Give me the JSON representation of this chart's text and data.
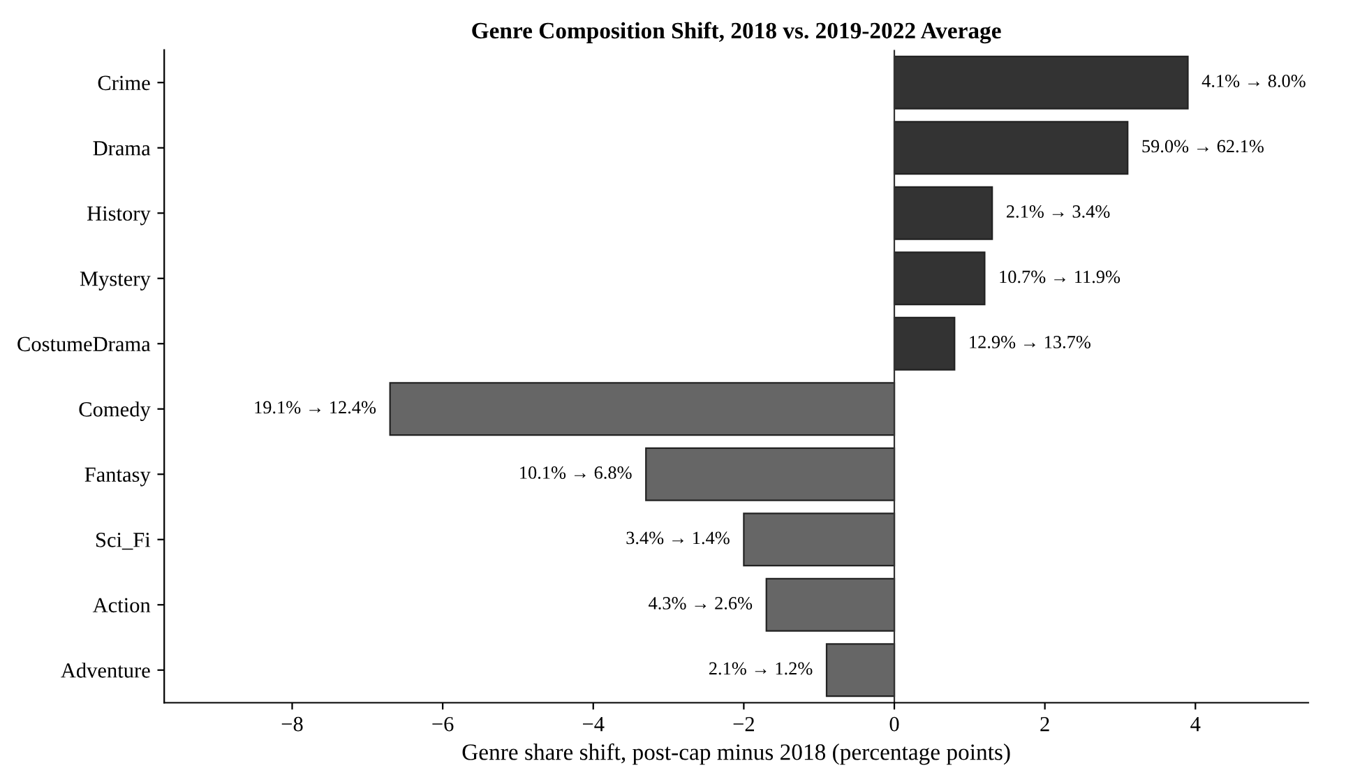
{
  "chart_data": {
    "type": "bar",
    "orientation": "horizontal",
    "title": "Genre Composition Shift, 2018 vs. 2019-2022 Average",
    "xlabel": "Genre share shift, post-cap minus 2018 (percentage points)",
    "categories": [
      "Crime",
      "Drama",
      "History",
      "Mystery",
      "CostumeDrama",
      "Comedy",
      "Fantasy",
      "Sci_Fi",
      "Action",
      "Adventure"
    ],
    "values": [
      3.9,
      3.1,
      1.3,
      1.2,
      0.8,
      -6.7,
      -3.3,
      -2.0,
      -1.7,
      -0.9
    ],
    "colors": [
      "#333333",
      "#333333",
      "#333333",
      "#333333",
      "#333333",
      "#666666",
      "#666666",
      "#666666",
      "#666666",
      "#666666"
    ],
    "annotations": [
      {
        "text": "4.1% → 8.0%",
        "x": 3.9,
        "y": "Crime"
      },
      {
        "text": "59.0% → 62.1%",
        "x": 3.1,
        "y": "Drama"
      },
      {
        "text": "2.1% → 3.4%",
        "x": 1.3,
        "y": "History"
      },
      {
        "text": "10.7% → 11.9%",
        "x": 1.2,
        "y": "Mystery"
      },
      {
        "text": "12.9% → 13.7%",
        "x": 0.8,
        "y": "CostumeDrama"
      },
      {
        "text": "19.1% → 12.4%",
        "x": -6.7,
        "y": "Comedy"
      },
      {
        "text": "10.1% → 6.8%",
        "x": -3.3,
        "y": "Fantasy"
      },
      {
        "text": "3.4% → 1.4%",
        "x": -2.0,
        "y": "Sci_Fi"
      },
      {
        "text": "4.3% → 2.6%",
        "x": -1.7,
        "y": "Action"
      },
      {
        "text": "2.1% → 1.2%",
        "x": -0.9,
        "y": "Adventure"
      }
    ],
    "xlim": [
      -9.7,
      5.5
    ],
    "xticks": [
      {
        "value": -8,
        "label": "−8"
      },
      {
        "value": -6,
        "label": "−6"
      },
      {
        "value": -4,
        "label": "−4"
      },
      {
        "value": -2,
        "label": "−2"
      },
      0,
      2,
      4
    ],
    "ref_lines": [
      {
        "axis": "x",
        "value": 0,
        "color": "#333333"
      }
    ],
    "grid": false
  }
}
